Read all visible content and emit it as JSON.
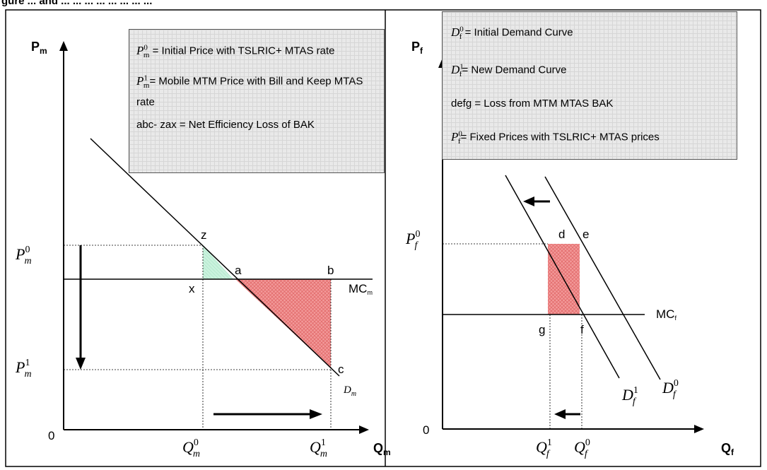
{
  "header_text": "gure ... and ... ... ... ... ... ... ... ...",
  "left_panel": {
    "y_axis_label": "P",
    "y_axis_sub": "m",
    "x_axis_label": "Q",
    "x_axis_sub": "m",
    "origin": "0",
    "legend": [
      {
        "sym": "P",
        "sub": "m",
        "sup": "0",
        "text": " = Initial Price with TSLRIC+ MTAS rate"
      },
      {
        "sym": "P",
        "sub": "m",
        "sup": "1",
        "text": "= Mobile MTM Price with Bill and Keep MTAS rate"
      },
      {
        "sym": "",
        "sub": "",
        "sup": "",
        "text": "abc- zax = Net Efficiency Loss of BAK"
      }
    ],
    "price_labels": [
      {
        "sym": "P",
        "sub": "m",
        "sup": "0"
      },
      {
        "sym": "P",
        "sub": "m",
        "sup": "1"
      }
    ],
    "qty_labels": [
      {
        "sym": "Q",
        "sub": "m",
        "sup": "0"
      },
      {
        "sym": "Q",
        "sub": "m",
        "sup": "1"
      }
    ],
    "points": [
      "z",
      "a",
      "b",
      "x",
      "c"
    ],
    "mc_label": "MC",
    "mc_sub": "m",
    "demand_label": "D",
    "demand_sub": "m"
  },
  "right_panel": {
    "y_axis_label": "P",
    "y_axis_sub": "f",
    "x_axis_label": "Q",
    "x_axis_sub": "f",
    "origin": "0",
    "legend": [
      {
        "sym": "D",
        "sub": "f",
        "sup": "0",
        "text": " = Initial Demand Curve"
      },
      {
        "sym": "D",
        "sub": "f",
        "sup": "1",
        "text": "= New Demand Curve"
      },
      {
        "sym": "",
        "sub": "",
        "sup": "",
        "text": "defg = Loss from MTM MTAS BAK"
      },
      {
        "sym": "P",
        "sub": "f",
        "sup": "0",
        "text": "= Fixed Prices with TSLRIC+ MTAS prices"
      }
    ],
    "price_label": {
      "sym": "P",
      "sub": "f",
      "sup": "0"
    },
    "qty_labels": [
      {
        "sym": "Q",
        "sub": "f",
        "sup": "1"
      },
      {
        "sym": "Q",
        "sub": "f",
        "sup": "0"
      }
    ],
    "points": [
      "d",
      "e",
      "g",
      "f"
    ],
    "mc_label": "MC",
    "mc_sub": "f",
    "demand_labels": [
      {
        "sym": "D",
        "sub": "f",
        "sup": "1"
      },
      {
        "sym": "D",
        "sub": "f",
        "sup": "0"
      }
    ]
  },
  "colors": {
    "green_fill": "#c9f2dd",
    "red_fill": "#f39a9a",
    "red_hatch": "#e26a6a",
    "legend_bg": "#e9e9e9"
  }
}
